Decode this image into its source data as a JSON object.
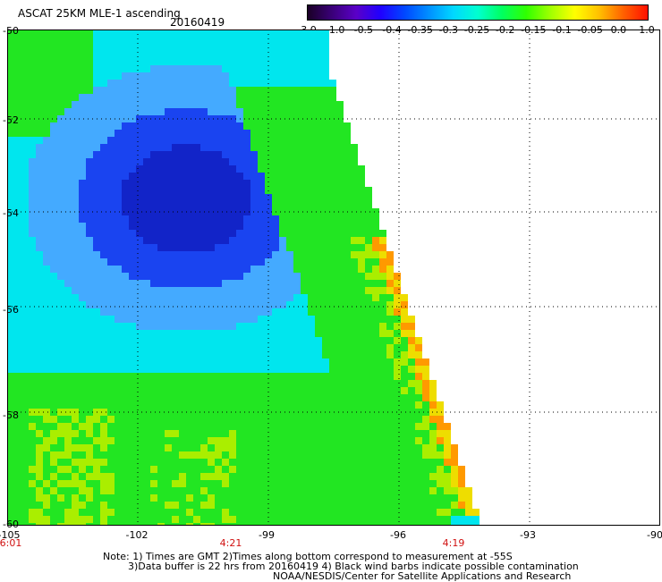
{
  "header": {
    "title": "ASCAT 25KM MLE-1 ascending",
    "date": "20160419"
  },
  "colorbar": {
    "labels": [
      "-3.0",
      "-1.0",
      "-0.5",
      "-0.4",
      "-0.35",
      "-0.3",
      "-0.25",
      "-0.2",
      "-0.15",
      "-0.1",
      "-0.05",
      "0.0",
      "1.0"
    ],
    "colors": [
      "#1a0026",
      "#3a0078",
      "#5a00c8",
      "#2000ff",
      "#0048ff",
      "#0090ff",
      "#00d8ff",
      "#00ffd0",
      "#00ff60",
      "#30ff00",
      "#a0ff00",
      "#ffff00",
      "#ffc000",
      "#ff6000",
      "#ff1000"
    ]
  },
  "axes": {
    "y_labels": [
      "-50",
      "-52",
      "-54",
      "-56",
      "-58",
      "-60"
    ],
    "x_labels": [
      "-105",
      "-102",
      "-99",
      "-96",
      "-93",
      "-90"
    ],
    "time_labels": [
      "6:01",
      "4:21",
      "4:19"
    ]
  },
  "notes": {
    "line1": "Note: 1) Times are GMT 2)Times along bottom correspond to measurement at -55S",
    "line2": "3)Data buffer is 22 hrs from 20160419 4) Black wind barbs indicate possible contamination",
    "line3": "NOAA/NESDIS/Center for Satellite Applications and Research"
  },
  "palette": {
    "green": "#22e622",
    "cyan": "#00e6ee",
    "lightblue": "#44aaff",
    "blue": "#1a44f0",
    "darkblue": "#1224c8",
    "yellowgreen": "#aaee00",
    "yellow": "#eedd00",
    "orange": "#ff9900"
  }
}
